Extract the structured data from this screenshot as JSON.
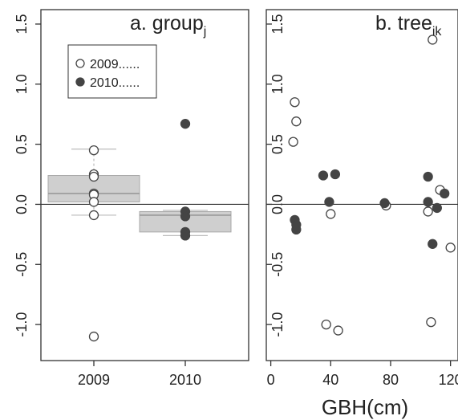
{
  "chart_data": [
    {
      "panel": "a",
      "type": "scatter",
      "title_main": "a. group",
      "title_sub": "j",
      "categories": [
        "2009",
        "2010"
      ],
      "ylim": [
        -1.3,
        1.62
      ],
      "yticks": [
        "-1.0",
        "-0.5",
        "0.0",
        "0.5",
        "1.0",
        "1.5"
      ],
      "reference_line_y": 0,
      "legend": {
        "placement": "top-left",
        "entries": [
          {
            "label": "2009......",
            "marker": "open-circle"
          },
          {
            "label": "2010......",
            "marker": "filled-circle"
          }
        ]
      },
      "boxes": [
        {
          "category": "2009",
          "q1": 0.02,
          "median": 0.09,
          "q3": 0.24,
          "whisker_low": -0.09,
          "whisker_high": 0.46
        },
        {
          "category": "2010",
          "q1": -0.23,
          "median": -0.09,
          "q3": -0.06,
          "whisker_low": -0.26,
          "whisker_high": -0.05
        }
      ],
      "series": [
        {
          "name": "2009",
          "category": "2009",
          "marker": "open",
          "values": [
            0.45,
            0.25,
            0.23,
            0.09,
            0.08,
            0.02,
            -0.09,
            -1.1
          ]
        },
        {
          "name": "2010",
          "category": "2010",
          "marker": "filled",
          "values": [
            0.67,
            -0.06,
            -0.1,
            -0.23,
            -0.26
          ]
        }
      ]
    },
    {
      "panel": "b",
      "type": "scatter",
      "title_main": "b. tree",
      "title_sub": "ik",
      "xlabel": "GBH(cm)",
      "xlim": [
        -3,
        125
      ],
      "xticks": [
        "0",
        "40",
        "80",
        "120"
      ],
      "ylim": [
        -1.3,
        1.62
      ],
      "yticks": [
        "-1.0",
        "-0.5",
        "0.0",
        "0.5",
        "1.0",
        "1.5"
      ],
      "reference_line_y": 0,
      "series": [
        {
          "name": "2009",
          "marker": "open",
          "x": [
            16,
            17,
            15,
            40,
            37,
            45,
            77,
            105,
            108,
            107,
            113,
            120
          ],
          "y": [
            0.85,
            0.69,
            0.52,
            -0.08,
            -1.0,
            -1.05,
            -0.01,
            -0.06,
            1.37,
            -0.98,
            0.12,
            -0.36
          ]
        },
        {
          "name": "2010",
          "marker": "filled",
          "x": [
            35,
            39,
            43,
            16,
            17,
            17,
            76,
            105,
            105,
            108,
            111,
            116
          ],
          "y": [
            0.24,
            0.02,
            0.25,
            -0.13,
            -0.17,
            -0.21,
            0.01,
            0.23,
            0.02,
            -0.33,
            -0.03,
            0.09
          ]
        }
      ]
    }
  ]
}
